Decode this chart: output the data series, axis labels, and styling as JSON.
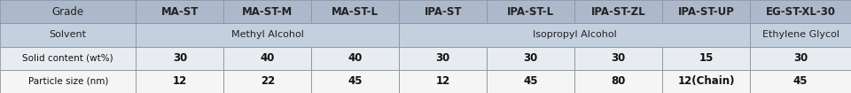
{
  "col_labels": [
    "Grade",
    "MA-ST",
    "MA-ST-M",
    "MA-ST-L",
    "IPA-ST",
    "IPA-ST-L",
    "IPA-ST-ZL",
    "IPA-ST-UP",
    "EG-ST-XL-30"
  ],
  "solvent_label": "Solvent",
  "solvent_spans": [
    {
      "text": "Methyl Alcohol",
      "cols": [
        1,
        2,
        3
      ]
    },
    {
      "text": "Isopropyl Alcohol",
      "cols": [
        4,
        5,
        6,
        7
      ]
    },
    {
      "text": "Ethylene Glycol",
      "cols": [
        8
      ]
    }
  ],
  "data_rows": [
    {
      "label": "Solid content (wt%)",
      "values": [
        "30",
        "40",
        "40",
        "30",
        "30",
        "30",
        "15",
        "30"
      ]
    },
    {
      "label": "Particle size (nm)",
      "values": [
        "12",
        "22",
        "45",
        "12",
        "45",
        "80",
        "12(Chain)",
        "45"
      ]
    }
  ],
  "header_bg": "#adb9ca",
  "solvent_bg": "#c5d0de",
  "row1_bg": "#e8ecf0",
  "row2_bg": "#f5f5f5",
  "border_color": "#8899aa",
  "header_text_color": "#222222",
  "data_text_color": "#111111",
  "figwidth": 9.6,
  "figheight": 1.05,
  "dpi": 100,
  "col_widths_rel": [
    1.55,
    1.0,
    1.0,
    1.0,
    1.0,
    1.0,
    1.0,
    1.0,
    1.15
  ],
  "n_rows": 4,
  "header_fontsize": 8.5,
  "data_fontsize": 8.0,
  "label_fontsize": 7.5
}
